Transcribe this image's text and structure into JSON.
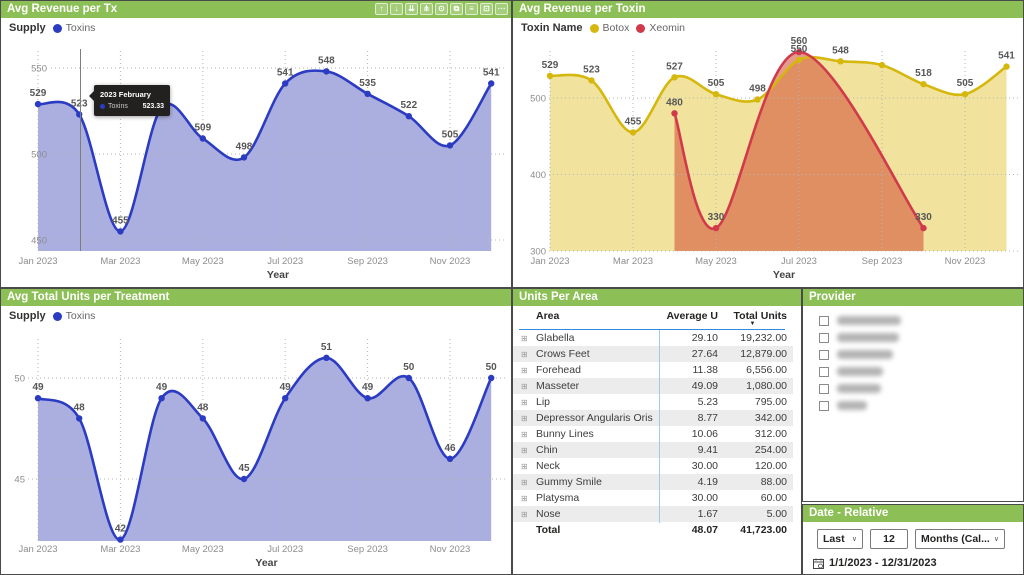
{
  "panels": {
    "revenue_tx": {
      "title": "Avg Revenue per Tx",
      "legend_title": "Supply",
      "tooltip": {
        "title": "2023 February",
        "series": "Toxins",
        "value": "523.33"
      }
    },
    "revenue_toxin": {
      "title": "Avg Revenue per Toxin",
      "legend_title": "Toxin Name"
    },
    "units_treatment": {
      "title": "Avg Total Units per Treatment",
      "legend_title": "Supply"
    },
    "units_area": {
      "title": "Units Per Area"
    },
    "provider": {
      "title": "Provider",
      "items_blurred": true,
      "item_count": 6,
      "blur_widths": [
        64,
        62,
        56,
        46,
        44,
        30
      ]
    },
    "date_relative": {
      "title": "Date - Relative",
      "mode": "Last",
      "count": "12",
      "unit": "Months (Cal...",
      "range": "1/1/2023 - 12/31/2023"
    }
  },
  "header_icons": [
    {
      "name": "drill-up-icon",
      "glyph": "↑"
    },
    {
      "name": "drill-down-icon",
      "glyph": "↓"
    },
    {
      "name": "go-to-next-level-icon",
      "glyph": "⇊"
    },
    {
      "name": "expand-all-icon",
      "glyph": "⋔"
    },
    {
      "name": "pin-icon",
      "glyph": "⊙"
    },
    {
      "name": "copy-icon",
      "glyph": "⧉"
    },
    {
      "name": "filter-icon",
      "glyph": "≡"
    },
    {
      "name": "focus-mode-icon",
      "glyph": "⊡"
    },
    {
      "name": "more-options-icon",
      "glyph": "⋯"
    }
  ],
  "icons": {
    "chevron_down": "∨",
    "sort_desc": "▼",
    "expand_box": "⊞"
  },
  "colors": {
    "header_green": "#8CBF55",
    "toxins_blue": "#2B3BC2",
    "botox_gold": "#D5B70D",
    "xeomin_red": "#D13A4B"
  },
  "chart_data": [
    {
      "id": "avg-revenue-per-tx",
      "type": "area",
      "title": "Avg Revenue per Tx",
      "categories": [
        "Jan 2023",
        "Feb 2023",
        "Mar 2023",
        "Apr 2023",
        "May 2023",
        "Jun 2023",
        "Jul 2023",
        "Aug 2023",
        "Sep 2023",
        "Oct 2023",
        "Nov 2023",
        "Dec 2023"
      ],
      "x_tick_idx": [
        0,
        2,
        4,
        6,
        8,
        10
      ],
      "xlabel": "Year",
      "y_ticks": [
        550,
        500,
        450
      ],
      "ylim": [
        440,
        560
      ],
      "legend_position": "top-left",
      "grid": true,
      "series": [
        {
          "name": "Toxins",
          "color": "#2B3BC2",
          "area": "#9CA1DB",
          "area_opacity": 0.85,
          "values": [
            529,
            523,
            455,
            527,
            509,
            498,
            541,
            548,
            535,
            522,
            505,
            541
          ]
        }
      ],
      "hovered_point": {
        "category": "Feb 2023",
        "value": 523.33
      }
    },
    {
      "id": "avg-revenue-per-toxin",
      "type": "area",
      "title": "Avg Revenue per Toxin",
      "categories": [
        "Jan 2023",
        "Feb 2023",
        "Mar 2023",
        "Apr 2023",
        "May 2023",
        "Jun 2023",
        "Jul 2023",
        "Aug 2023",
        "Sep 2023",
        "Oct 2023",
        "Nov 2023",
        "Dec 2023"
      ],
      "x_tick_idx": [
        0,
        2,
        4,
        6,
        8,
        10
      ],
      "xlabel": "Year",
      "y_ticks": [
        500,
        400,
        300
      ],
      "ylim": [
        300,
        570
      ],
      "legend_position": "top-left",
      "grid": true,
      "series": [
        {
          "name": "Botox",
          "color": "#D5B70D",
          "area": "#EDDC85",
          "area_opacity": 0.8,
          "values": [
            529,
            523,
            455,
            527,
            505,
            498,
            550,
            548,
            543,
            518,
            505,
            541
          ],
          "labels": [
            529,
            523,
            455,
            527,
            505,
            498,
            550,
            548,
            null,
            518,
            505,
            541
          ]
        },
        {
          "name": "Xeomin",
          "color": "#D13A4B",
          "area": "#D04A32",
          "area_opacity": 0.55,
          "values": [
            null,
            null,
            null,
            480,
            330,
            null,
            560,
            null,
            null,
            330,
            null,
            null
          ],
          "labels": [
            null,
            null,
            null,
            480,
            330,
            null,
            560,
            null,
            null,
            330,
            null,
            null
          ]
        }
      ]
    },
    {
      "id": "avg-total-units-per-treatment",
      "type": "area",
      "title": "Avg Total Units per Treatment",
      "categories": [
        "Jan 2023",
        "Feb 2023",
        "Mar 2023",
        "Apr 2023",
        "May 2023",
        "Jun 2023",
        "Jul 2023",
        "Aug 2023",
        "Sep 2023",
        "Oct 2023",
        "Nov 2023",
        "Dec 2023"
      ],
      "x_tick_idx": [
        0,
        2,
        4,
        6,
        8,
        10
      ],
      "xlabel": "Year",
      "y_ticks": [
        50,
        45
      ],
      "ylim": [
        41,
        52
      ],
      "legend_position": "top-left",
      "grid": true,
      "series": [
        {
          "name": "Toxins",
          "color": "#2B3BC2",
          "area": "#9CA1DB",
          "area_opacity": 0.85,
          "values": [
            49,
            48,
            42,
            49,
            48,
            45,
            49,
            51,
            49,
            50,
            46,
            50
          ]
        }
      ]
    },
    {
      "id": "units-per-area",
      "type": "table",
      "title": "Units Per Area",
      "columns": [
        "Area",
        "Average U",
        "Total Units"
      ],
      "sorted_by": "Total Units",
      "sort_direction": "descending",
      "rows": [
        [
          "Glabella",
          "29.10",
          "19,232.00"
        ],
        [
          "Crows Feet",
          "27.64",
          "12,879.00"
        ],
        [
          "Forehead",
          "11.38",
          "6,556.00"
        ],
        [
          "Masseter",
          "49.09",
          "1,080.00"
        ],
        [
          "Lip",
          "5.23",
          "795.00"
        ],
        [
          "Depressor Angularis Oris",
          "8.77",
          "342.00"
        ],
        [
          "Bunny Lines",
          "10.06",
          "312.00"
        ],
        [
          "Chin",
          "9.41",
          "254.00"
        ],
        [
          "Neck",
          "30.00",
          "120.00"
        ],
        [
          "Gummy Smile",
          "4.19",
          "88.00"
        ],
        [
          "Platysma",
          "30.00",
          "60.00"
        ],
        [
          "Nose",
          "1.67",
          "5.00"
        ]
      ],
      "total_row": [
        "Total",
        "48.07",
        "41,723.00"
      ]
    }
  ]
}
